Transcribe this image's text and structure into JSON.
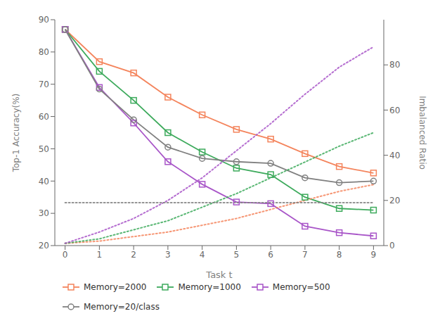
{
  "chart_data": {
    "type": "line",
    "x": [
      0,
      1,
      2,
      3,
      4,
      5,
      6,
      7,
      8,
      9
    ],
    "xlim": [
      -0.3,
      9.3
    ],
    "xticks": [
      0,
      1,
      2,
      3,
      4,
      5,
      6,
      7,
      8,
      9
    ],
    "xlabel": "Task t",
    "ylabel": "Top-1 Accuracy(%)",
    "y2label": "Imbalanced Ratio",
    "ylim": [
      20,
      90
    ],
    "yticks": [
      20,
      30,
      40,
      50,
      60,
      70,
      80,
      90
    ],
    "y2lim": [
      0,
      100
    ],
    "y2ticks": [
      0,
      20,
      40,
      60,
      80
    ],
    "legend": "lower left",
    "grid": false,
    "series": [
      {
        "name": "Memory=2000",
        "color": "#F4845C",
        "marker": "square",
        "line_style": "solid",
        "values": [
          87.0,
          77.0,
          73.5,
          66.0,
          60.5,
          56.0,
          53.0,
          48.5,
          44.5,
          42.5
        ]
      },
      {
        "name": "Memory=1000",
        "color": "#3DAA5C",
        "marker": "square",
        "line_style": "solid",
        "values": [
          87.0,
          74.0,
          65.0,
          55.0,
          49.0,
          44.0,
          42.0,
          35.0,
          31.5,
          31.0
        ]
      },
      {
        "name": "Memory=500",
        "color": "#A855C8",
        "marker": "square",
        "line_style": "solid",
        "values": [
          87.0,
          69.0,
          58.0,
          46.0,
          39.0,
          33.5,
          33.0,
          26.0,
          24.0,
          23.0
        ]
      },
      {
        "name": "Memory=20/class",
        "color": "#808080",
        "marker": "circle",
        "line_style": "solid",
        "values": [
          87.0,
          68.5,
          59.0,
          50.5,
          47.0,
          46.0,
          45.5,
          41.0,
          39.5,
          40.0
        ]
      },
      {
        "color": "#F4845C",
        "axis": "y2",
        "marker": "none",
        "line_style": "dotted",
        "values": [
          1,
          2,
          4,
          6,
          9,
          12,
          16,
          20,
          24,
          27
        ]
      },
      {
        "color": "#3DAA5C",
        "axis": "y2",
        "marker": "none",
        "line_style": "dotted",
        "values": [
          1,
          3,
          7,
          11,
          17,
          23,
          30,
          37,
          44,
          50
        ]
      },
      {
        "color": "#A855C8",
        "axis": "y2",
        "marker": "none",
        "line_style": "dotted",
        "values": [
          1,
          6,
          12,
          20,
          30,
          42,
          54,
          67,
          79,
          88
        ]
      },
      {
        "color": "#808080",
        "axis": "y2",
        "marker": "none",
        "line_style": "dotted",
        "values": [
          19,
          19,
          19,
          19,
          19,
          19,
          19,
          19,
          19,
          19
        ]
      }
    ]
  }
}
